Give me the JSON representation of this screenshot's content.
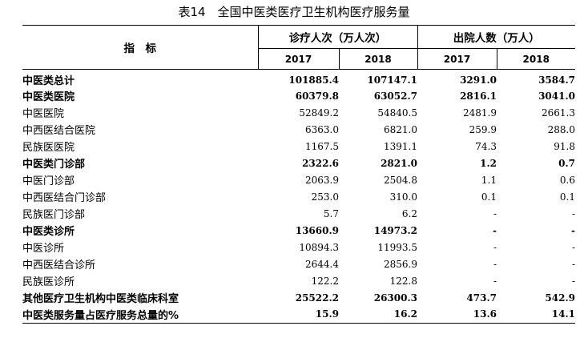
{
  "title": "表14　全国中医类医疗卫生机构医疗服务量",
  "header": {
    "indicator": "指　标",
    "group1": "诊疗人次（万人次）",
    "group2": "出院人数（万人）",
    "years": [
      "2017",
      "2018",
      "2017",
      "2018"
    ]
  },
  "rows": [
    {
      "label": "中医类总计",
      "values": [
        "101885.4",
        "107147.1",
        "3291.0",
        "3584.7"
      ],
      "bold": true,
      "indent": 0
    },
    {
      "label": "中医类医院",
      "values": [
        "60379.8",
        "63052.7",
        "2816.1",
        "3041.0"
      ],
      "bold": true,
      "indent": 1
    },
    {
      "label": "中医医院",
      "values": [
        "52849.2",
        "54840.5",
        "2481.9",
        "2661.3"
      ],
      "bold": false,
      "indent": 2
    },
    {
      "label": "中西医结合医院",
      "values": [
        "6363.0",
        "6821.0",
        "259.9",
        "288.0"
      ],
      "bold": false,
      "indent": 1
    },
    {
      "label": "民族医医院",
      "values": [
        "1167.5",
        "1391.1",
        "74.3",
        "91.8"
      ],
      "bold": false,
      "indent": 1
    },
    {
      "label": "中医类门诊部",
      "values": [
        "2322.6",
        "2821.0",
        "1.2",
        "0.7"
      ],
      "bold": true,
      "indent": 1
    },
    {
      "label": "中医门诊部",
      "values": [
        "2063.9",
        "2504.8",
        "1.1",
        "0.6"
      ],
      "bold": false,
      "indent": 1
    },
    {
      "label": "中西医结合门诊部",
      "values": [
        "253.0",
        "310.0",
        "0.1",
        "0.1"
      ],
      "bold": false,
      "indent": 2
    },
    {
      "label": "民族医门诊部",
      "values": [
        "5.7",
        "6.2",
        "-",
        "-"
      ],
      "bold": false,
      "indent": 2
    },
    {
      "label": "中医类诊所",
      "values": [
        "13660.9",
        "14973.2",
        "-",
        "-"
      ],
      "bold": true,
      "indent": 1
    },
    {
      "label": "中医诊所",
      "values": [
        "10894.3",
        "11993.5",
        "-",
        "-"
      ],
      "bold": false,
      "indent": 2
    },
    {
      "label": "中西医结合诊所",
      "values": [
        "2644.4",
        "2856.9",
        "-",
        "-"
      ],
      "bold": false,
      "indent": 1
    },
    {
      "label": "民族医诊所",
      "values": [
        "122.2",
        "122.8",
        "-",
        "-"
      ],
      "bold": false,
      "indent": 1
    },
    {
      "label": "其他医疗卫生机构中医类临床科室",
      "values": [
        "25522.2",
        "26300.3",
        "473.7",
        "542.9"
      ],
      "bold": true,
      "indent": 1
    },
    {
      "label": "中医类服务量占医疗服务总量的%",
      "values": [
        "15.9",
        "16.2",
        "13.6",
        "14.1"
      ],
      "bold": true,
      "indent": 0
    }
  ]
}
